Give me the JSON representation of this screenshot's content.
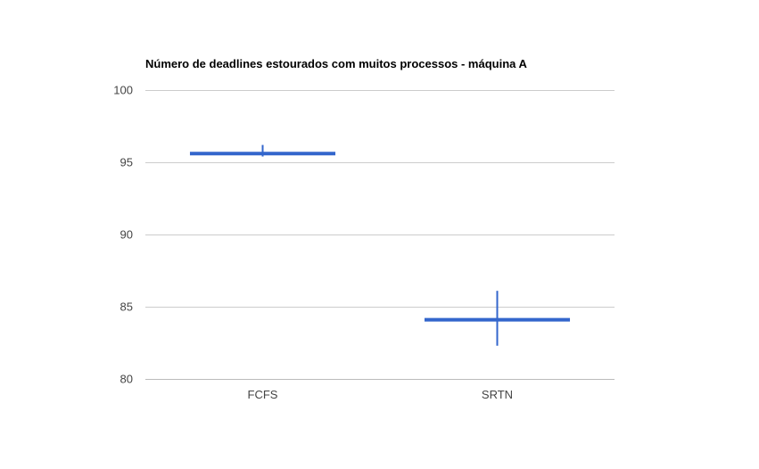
{
  "chart_data": {
    "type": "bar",
    "title": "Número de deadlines estourados com muitos processos - máquina A",
    "xlabel": "",
    "ylabel": "",
    "categories": [
      "FCFS",
      "SRTN"
    ],
    "series": [
      {
        "values": [
          95.6,
          84.1
        ],
        "error_low": [
          95.4,
          82.3
        ],
        "error_high": [
          96.2,
          86.1
        ]
      }
    ],
    "ylim": [
      80,
      100
    ],
    "yticks": [
      100,
      95,
      90,
      85,
      80
    ],
    "grid": true,
    "legend": "none",
    "colors": {
      "series": "#3366cc",
      "grid": "#cccccc",
      "axis": "#bbbbbb"
    }
  }
}
